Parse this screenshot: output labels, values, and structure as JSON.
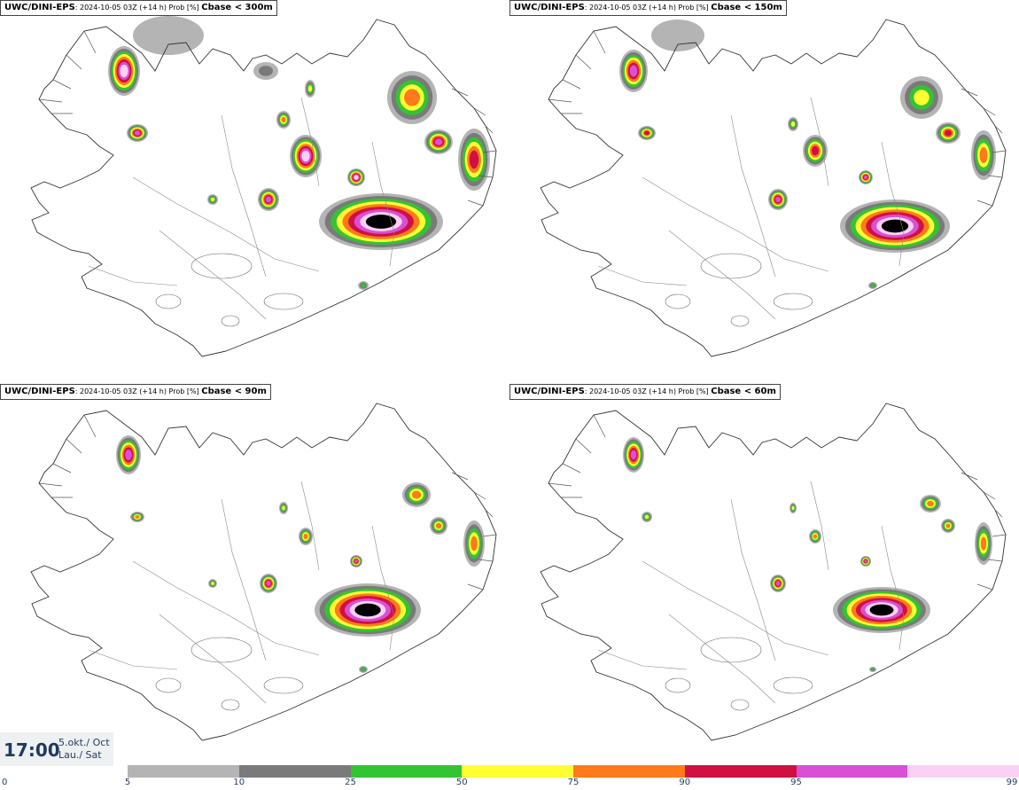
{
  "panels": [
    {
      "model": "UWC/DINI-EPS",
      "run": ": 2024-10-05 03Z (+14 h) Prob [%] ",
      "threshold": "Cbase < 300m"
    },
    {
      "model": "UWC/DINI-EPS",
      "run": ": 2024-10-05 03Z (+14 h) Prob [%] ",
      "threshold": "Cbase < 150m"
    },
    {
      "model": "UWC/DINI-EPS",
      "run": ": 2024-10-05 03Z (+14 h) Prob [%] ",
      "threshold": "Cbase < 90m"
    },
    {
      "model": "UWC/DINI-EPS",
      "run": ": 2024-10-05 03Z (+14 h) Prob [%] ",
      "threshold": "Cbase < 60m"
    }
  ],
  "time": {
    "clock": "17:00",
    "date_line1": "5.okt./ Oct",
    "date_line2": "Lau./ Sat"
  },
  "legend": {
    "ticks": [
      "0",
      "5",
      "10",
      "25",
      "50",
      "75",
      "90",
      "95",
      "99"
    ],
    "colors": [
      "#b4b4b4",
      "#7a7a7a",
      "#33c433",
      "#ffff33",
      "#ff7a1a",
      "#d01042",
      "#d94fd6",
      "#fbd0f5"
    ]
  }
}
